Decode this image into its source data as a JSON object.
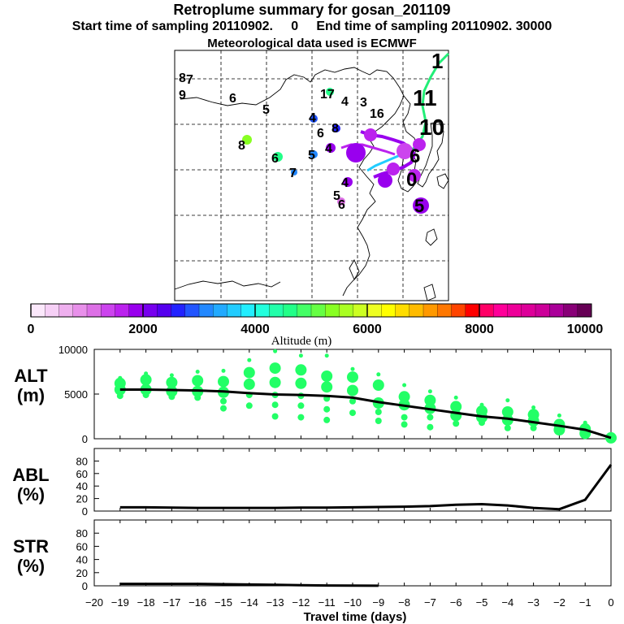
{
  "header": {
    "title": "Retroplume summary for gosan_201109",
    "sampling": "Start time of sampling 20110902.     0     End time of sampling 20110902. 30000",
    "met": "Meteorological data used is ECMWF"
  },
  "colorbar": {
    "tick_labels": [
      "0",
      "2000",
      "4000",
      "6000",
      "8000",
      "10000"
    ],
    "label": "Altitude  (m)",
    "colors": [
      "#fbe8fb",
      "#f6d0f6",
      "#efb0ef",
      "#e890ea",
      "#dd70e6",
      "#cc44ee",
      "#bb22ee",
      "#9900ee",
      "#7700ee",
      "#5500ee",
      "#2222ff",
      "#2255ff",
      "#2288ff",
      "#22aaff",
      "#22ccff",
      "#22eeff",
      "#22ffdd",
      "#22ffaa",
      "#22ff88",
      "#44ff66",
      "#66ff44",
      "#88ff22",
      "#aaff22",
      "#ccff22",
      "#eeff22",
      "#ffff00",
      "#ffdd00",
      "#ffbb00",
      "#ff9900",
      "#ff7700",
      "#ff4400",
      "#ff0000",
      "#ff0066",
      "#ff0099",
      "#ee0099",
      "#dd0099",
      "#cc0099",
      "#aa0099",
      "#880077",
      "#660055"
    ]
  },
  "map": {
    "labels": [
      {
        "t": "8",
        "c": "#ffff00"
      },
      {
        "t": "7",
        "c": "#22ffaa"
      },
      {
        "t": "9",
        "c": "#22ff88"
      },
      {
        "t": "6",
        "c": "#2288ff"
      },
      {
        "t": "5",
        "c": "#2255ff"
      },
      {
        "t": "17",
        "c": "#22ff88"
      },
      {
        "t": "4",
        "c": "#22ffaa"
      },
      {
        "t": "3",
        "c": "#22ffdd"
      },
      {
        "t": "16",
        "c": "#22ffdd"
      },
      {
        "t": "4",
        "c": "#2255ff"
      },
      {
        "t": "6",
        "c": "#2255ff"
      },
      {
        "t": "8",
        "c": "#2222ff"
      },
      {
        "t": "8",
        "c": "#88ff22"
      },
      {
        "t": "6",
        "c": "#22ff88"
      },
      {
        "t": "5",
        "c": "#2288ff"
      },
      {
        "t": "4",
        "c": "#9900ee"
      },
      {
        "t": "7",
        "c": "#2288ff"
      },
      {
        "t": "4",
        "c": "#9900ee"
      },
      {
        "t": "5",
        "c": "#dd70e6"
      },
      {
        "t": "6",
        "c": "#dd70e6"
      },
      {
        "t": "5",
        "c": "#bb22ee"
      },
      {
        "t": "0",
        "c": "#bb22ee"
      },
      {
        "t": "6",
        "c": "#22ffdd"
      },
      {
        "t": "1",
        "c": "#22ff88"
      },
      {
        "t": "11",
        "c": "#22ff88"
      },
      {
        "t": "10",
        "c": "#22ff88"
      }
    ]
  },
  "chart_data": [
    {
      "type": "scatter",
      "name": "ALT",
      "ylabel": "ALT\n(m)",
      "xlim": [
        -20,
        0
      ],
      "ylim": [
        0,
        10000
      ],
      "yticks": [
        0,
        5000,
        10000
      ],
      "ytick_labels": [
        "0",
        "5000",
        "10000"
      ],
      "line_color": "#000000",
      "point_color": "#22ff66",
      "mean_line": {
        "x": [
          -19,
          -18,
          -17,
          -16,
          -15,
          -14,
          -13,
          -12,
          -11,
          -10,
          -9,
          -8,
          -7,
          -6,
          -5,
          -4,
          -3,
          -2,
          -1,
          0
        ],
        "y": [
          5500,
          5500,
          5450,
          5400,
          5300,
          5100,
          4950,
          4900,
          4800,
          4600,
          4100,
          3700,
          3300,
          2900,
          2500,
          2250,
          1850,
          1450,
          1000,
          100
        ]
      },
      "clusters": {
        "x": [
          -19,
          -18,
          -17,
          -16,
          -15,
          -14,
          -13,
          -12,
          -11,
          -10,
          -9,
          -8,
          -7,
          -6,
          -5,
          -4,
          -3,
          -2,
          -1,
          0
        ],
        "y": [
          [
            6800,
            6200,
            5500,
            4800
          ],
          [
            7300,
            6600,
            5500,
            4900
          ],
          [
            7100,
            6300,
            5300,
            4700
          ],
          [
            7500,
            6500,
            5300,
            4600
          ],
          [
            7600,
            6400,
            5200,
            4200,
            3400
          ],
          [
            8800,
            7400,
            6100,
            4900,
            3700
          ],
          [
            9800,
            7900,
            6300,
            4900,
            3800,
            2500
          ],
          [
            9300,
            7700,
            6200,
            4800,
            3700,
            2400
          ],
          [
            9300,
            7000,
            5800,
            4500,
            3300,
            2100
          ],
          [
            7800,
            6900,
            5400,
            4200,
            2900
          ],
          [
            7200,
            6000,
            4000,
            3000,
            2000
          ],
          [
            6000,
            4700,
            3800,
            2400,
            1600
          ],
          [
            5300,
            4300,
            3400,
            2400,
            1300
          ],
          [
            4600,
            3600,
            2600,
            1700
          ],
          [
            3800,
            3100,
            2400,
            1800
          ],
          [
            4300,
            3000,
            2100,
            1200
          ],
          [
            3500,
            2700,
            2000,
            1200
          ],
          [
            2600,
            1600,
            1000
          ],
          [
            1800,
            1100,
            600
          ],
          [
            500,
            100
          ]
        ]
      }
    },
    {
      "type": "line",
      "name": "ABL",
      "ylabel": "ABL\n(%)",
      "xlim": [
        -20,
        0
      ],
      "ylim": [
        0,
        100
      ],
      "yticks": [
        0,
        20,
        40,
        60,
        80
      ],
      "ytick_labels": [
        "0",
        "20",
        "40",
        "60",
        "80"
      ],
      "x": [
        -19,
        -18,
        -17,
        -16,
        -15,
        -14,
        -13,
        -12,
        -11,
        -10,
        -9,
        -8,
        -7,
        -6,
        -5,
        -4,
        -3,
        -2,
        -1,
        0
      ],
      "y": [
        6,
        6,
        5.5,
        5,
        5,
        5,
        5,
        5.5,
        5.5,
        6,
        6.5,
        7,
        8,
        10,
        11,
        9,
        5,
        3,
        18,
        74
      ]
    },
    {
      "type": "line",
      "name": "STR",
      "ylabel": "STR\n(%)",
      "xlim": [
        -20,
        0
      ],
      "ylim": [
        0,
        100
      ],
      "yticks": [
        0,
        20,
        40,
        60,
        80
      ],
      "ytick_labels": [
        "0",
        "20",
        "40",
        "60",
        "80"
      ],
      "x": [
        -19,
        -18,
        -17,
        -16,
        -15,
        -14,
        -13,
        -12,
        -11,
        -10,
        -9
      ],
      "y": [
        3,
        3,
        3,
        3,
        2.5,
        2,
        1.5,
        1,
        0.5,
        0.3,
        0.1
      ]
    }
  ],
  "xaxis": {
    "label": "Travel time (days)",
    "ticks": [
      -20,
      -19,
      -18,
      -17,
      -16,
      -15,
      -14,
      -13,
      -12,
      -11,
      -10,
      -9,
      -8,
      -7,
      -6,
      -5,
      -4,
      -3,
      -2,
      -1,
      0
    ],
    "tick_labels": [
      "−20",
      "−19",
      "−18",
      "−17",
      "−16",
      "−15",
      "−14",
      "−13",
      "−12",
      "−11",
      "−10",
      "−9",
      "−8",
      "−7",
      "−6",
      "−5",
      "−4",
      "−3",
      "−2",
      "−1",
      "0"
    ]
  }
}
